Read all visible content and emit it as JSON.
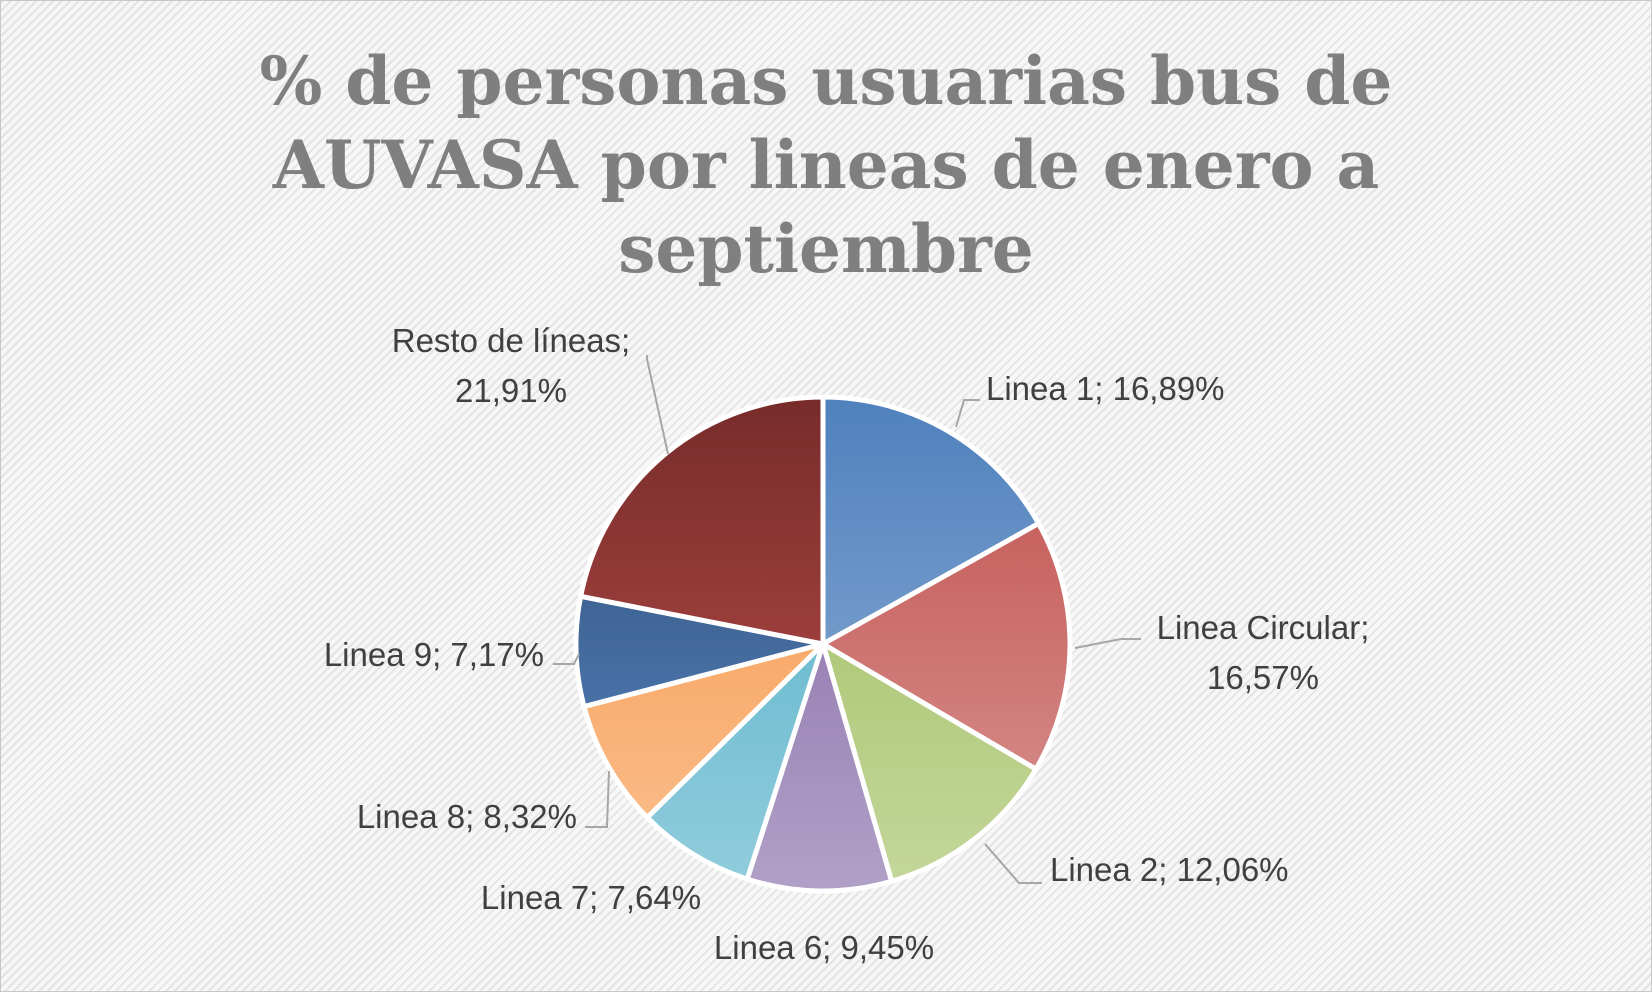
{
  "chart_data": {
    "type": "pie",
    "title_lines": [
      "% de personas usuarias bus de",
      "AUVASA por lineas de enero a",
      "septiembre"
    ],
    "slices": [
      {
        "name": "Linea 1",
        "label": [
          "Linea 1; 16,89%"
        ],
        "value": 16.89,
        "color_dark": "#4f81bd",
        "color_light": "#95b3d7"
      },
      {
        "name": "Linea Circular",
        "label": [
          "Linea Circular;",
          "16,57%"
        ],
        "value": 16.57,
        "color_dark": "#c0504d",
        "color_light": "#da9694"
      },
      {
        "name": "Linea 2",
        "label": [
          "Linea 2; 12,06%"
        ],
        "value": 12.06,
        "color_dark": "#9bbb59",
        "color_light": "#c4d79b"
      },
      {
        "name": "Linea 6",
        "label": [
          "Linea 6; 9,45%"
        ],
        "value": 9.45,
        "color_dark": "#8064a2",
        "color_light": "#b1a0c7"
      },
      {
        "name": "Linea 7",
        "label": [
          "Linea 7; 7,64%"
        ],
        "value": 7.64,
        "color_dark": "#4bacc6",
        "color_light": "#92cddc"
      },
      {
        "name": "Linea 8",
        "label": [
          "Linea 8; 8,32%"
        ],
        "value": 8.32,
        "color_dark": "#f79646",
        "color_light": "#fabf8f"
      },
      {
        "name": "Linea 9",
        "label": [
          "Linea 9; 7,17%"
        ],
        "value": 7.17,
        "color_dark": "#2c4d75",
        "color_light": "#5b87c4"
      },
      {
        "name": "Resto de líneas",
        "label": [
          "Resto de líneas;",
          "21,91%"
        ],
        "value": 21.91,
        "color_dark": "#772c2a",
        "color_light": "#c0504d"
      }
    ],
    "legend": "none",
    "data_labels": "outside with leader lines"
  }
}
